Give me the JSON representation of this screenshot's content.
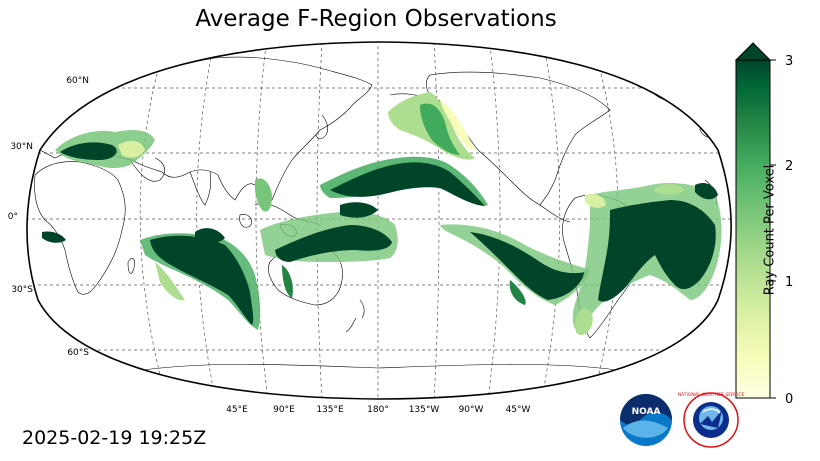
{
  "title": "Average F-Region Observations",
  "timestamp": "2025-02-19 19:25Z",
  "map": {
    "projection": "Robinson (Pacific-centered, 180° center)",
    "lat_labels": [
      "60°N",
      "30°N",
      "0°",
      "30°S",
      "60°S"
    ],
    "lon_labels": [
      "45°E",
      "90°E",
      "135°E",
      "180°",
      "135°W",
      "90°W",
      "45°W"
    ],
    "gridlines": true
  },
  "colorbar": {
    "label": "Ray Count Per Voxel",
    "ticks": [
      "0",
      "1",
      "2",
      "3"
    ],
    "range": [
      0,
      3
    ],
    "extend": "max",
    "colors": [
      "#ffffe5",
      "#f7fcb9",
      "#d9f0a3",
      "#addd8e",
      "#78c679",
      "#41ab5d",
      "#238443",
      "#006837",
      "#004529"
    ]
  },
  "logos": {
    "noaa": "NOAA",
    "nws": "NATIONAL WEATHER SERVICE"
  }
}
